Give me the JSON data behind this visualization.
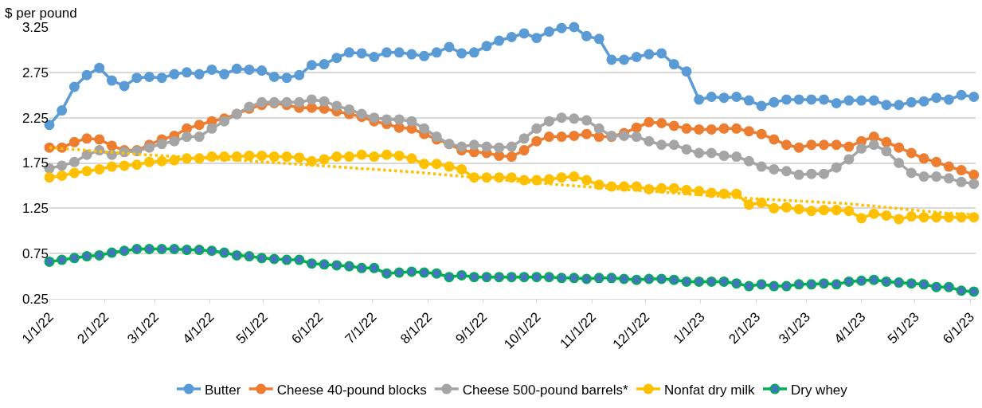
{
  "chart_data": {
    "type": "line",
    "ylabel": "$ per pound",
    "x": [
      "2022-01-01",
      "2022-01-08",
      "2022-01-15",
      "2022-01-22",
      "2022-01-29",
      "2022-02-05",
      "2022-02-12",
      "2022-02-19",
      "2022-02-26",
      "2022-03-05",
      "2022-03-12",
      "2022-03-19",
      "2022-03-26",
      "2022-04-02",
      "2022-04-09",
      "2022-04-16",
      "2022-04-23",
      "2022-04-30",
      "2022-05-07",
      "2022-05-14",
      "2022-05-21",
      "2022-05-28",
      "2022-06-04",
      "2022-06-11",
      "2022-06-18",
      "2022-06-25",
      "2022-07-02",
      "2022-07-09",
      "2022-07-16",
      "2022-07-23",
      "2022-07-30",
      "2022-08-06",
      "2022-08-13",
      "2022-08-20",
      "2022-08-27",
      "2022-09-03",
      "2022-09-10",
      "2022-09-17",
      "2022-09-24",
      "2022-10-01",
      "2022-10-08",
      "2022-10-15",
      "2022-10-22",
      "2022-10-29",
      "2022-11-05",
      "2022-11-12",
      "2022-11-19",
      "2022-11-26",
      "2022-12-03",
      "2022-12-10",
      "2022-12-17",
      "2022-12-24",
      "2022-12-31",
      "2023-01-07",
      "2023-01-14",
      "2023-01-21",
      "2023-01-28",
      "2023-02-04",
      "2023-02-11",
      "2023-02-18",
      "2023-02-25",
      "2023-03-04",
      "2023-03-11",
      "2023-03-18",
      "2023-03-25",
      "2023-04-01",
      "2023-04-08",
      "2023-04-15",
      "2023-04-22",
      "2023-04-29",
      "2023-05-06",
      "2023-05-13",
      "2023-05-20",
      "2023-05-27",
      "2023-06-03"
    ],
    "series": [
      {
        "name": "Butter",
        "color": "#5b9bd5",
        "values": [
          2.17,
          2.33,
          2.59,
          2.72,
          2.8,
          2.66,
          2.6,
          2.69,
          2.7,
          2.69,
          2.73,
          2.75,
          2.73,
          2.78,
          2.73,
          2.79,
          2.78,
          2.77,
          2.7,
          2.69,
          2.72,
          2.83,
          2.84,
          2.91,
          2.97,
          2.96,
          2.92,
          2.97,
          2.97,
          2.95,
          2.93,
          2.97,
          3.03,
          2.96,
          2.97,
          3.04,
          3.1,
          3.14,
          3.18,
          3.13,
          3.2,
          3.24,
          3.25,
          3.15,
          3.12,
          2.89,
          2.89,
          2.92,
          2.95,
          2.96,
          2.84,
          2.76,
          2.45,
          2.48,
          2.47,
          2.48,
          2.44,
          2.38,
          2.42,
          2.45,
          2.45,
          2.45,
          2.45,
          2.41,
          2.44,
          2.44,
          2.44,
          2.39,
          2.39,
          2.42,
          2.43,
          2.47,
          2.45,
          2.5,
          2.48
        ]
      },
      {
        "name": "Cheese 40-pound blocks",
        "color": "#ed7d31",
        "values": [
          1.92,
          1.92,
          1.98,
          2.02,
          2.01,
          1.94,
          1.89,
          1.89,
          1.95,
          2.01,
          2.05,
          2.13,
          2.17,
          2.21,
          2.24,
          2.29,
          2.35,
          2.39,
          2.41,
          2.39,
          2.36,
          2.36,
          2.35,
          2.32,
          2.29,
          2.26,
          2.21,
          2.18,
          2.14,
          2.13,
          2.07,
          2.01,
          1.96,
          1.89,
          1.87,
          1.86,
          1.83,
          1.82,
          1.89,
          1.99,
          2.04,
          2.04,
          2.05,
          2.07,
          2.04,
          2.04,
          2.08,
          2.14,
          2.2,
          2.19,
          2.16,
          2.13,
          2.12,
          2.12,
          2.13,
          2.13,
          2.1,
          2.07,
          2.01,
          1.95,
          1.92,
          1.95,
          1.95,
          1.95,
          1.93,
          1.99,
          2.04,
          1.98,
          1.92,
          1.86,
          1.8,
          1.76,
          1.71,
          1.67,
          1.62
        ]
      },
      {
        "name": "Cheese 500-pound barrels*",
        "color": "#a5a5a5",
        "values": [
          1.69,
          1.72,
          1.76,
          1.84,
          1.89,
          1.84,
          1.87,
          1.88,
          1.92,
          1.96,
          1.99,
          2.04,
          2.04,
          2.13,
          2.21,
          2.29,
          2.37,
          2.42,
          2.42,
          2.42,
          2.42,
          2.45,
          2.43,
          2.38,
          2.34,
          2.29,
          2.25,
          2.23,
          2.23,
          2.21,
          2.13,
          2.04,
          1.96,
          1.93,
          1.95,
          1.93,
          1.92,
          1.93,
          2.02,
          2.13,
          2.21,
          2.25,
          2.24,
          2.22,
          2.13,
          2.05,
          2.05,
          2.04,
          1.99,
          1.95,
          1.95,
          1.9,
          1.86,
          1.86,
          1.83,
          1.82,
          1.77,
          1.71,
          1.68,
          1.66,
          1.62,
          1.63,
          1.63,
          1.7,
          1.79,
          1.91,
          1.95,
          1.88,
          1.75,
          1.64,
          1.6,
          1.6,
          1.58,
          1.54,
          1.52
        ]
      },
      {
        "name": "Nonfat dry milk",
        "color": "#ffc000",
        "values": [
          1.59,
          1.61,
          1.64,
          1.66,
          1.68,
          1.71,
          1.72,
          1.73,
          1.76,
          1.77,
          1.78,
          1.8,
          1.8,
          1.82,
          1.82,
          1.82,
          1.83,
          1.83,
          1.82,
          1.82,
          1.81,
          1.77,
          1.79,
          1.82,
          1.82,
          1.84,
          1.82,
          1.84,
          1.83,
          1.8,
          1.74,
          1.74,
          1.71,
          1.68,
          1.59,
          1.59,
          1.59,
          1.59,
          1.56,
          1.56,
          1.57,
          1.59,
          1.6,
          1.56,
          1.51,
          1.49,
          1.49,
          1.49,
          1.46,
          1.47,
          1.47,
          1.45,
          1.44,
          1.42,
          1.41,
          1.41,
          1.29,
          1.31,
          1.25,
          1.26,
          1.24,
          1.22,
          1.23,
          1.23,
          1.22,
          1.14,
          1.19,
          1.17,
          1.13,
          1.16,
          1.15,
          1.15,
          1.15,
          1.15,
          1.15
        ]
      },
      {
        "name": "Dry whey",
        "color": "#00b050",
        "colors": [
          "#4472c4",
          "#4472c4",
          "#4472c4",
          "#4472c4",
          "#4472c4",
          "#4472c4",
          "#4472c4",
          "#4472c4",
          "#4472c4",
          "#4472c4",
          "#4472c4",
          "#4472c4",
          "#4472c4",
          "#4472c4",
          "#4472c4",
          "#4472c4",
          "#4472c4",
          "#4472c4",
          "#4472c4",
          "#4472c4",
          "#4472c4",
          "#4472c4",
          "#4472c4",
          "#4472c4",
          "#4472c4",
          "#4472c4",
          "#4472c4",
          "#4472c4",
          "#4472c4",
          "#4472c4",
          "#4472c4",
          "#4472c4",
          "#4472c4",
          "#4472c4",
          "#4472c4",
          "#4472c4",
          "#4472c4",
          "#4472c4",
          "#4472c4",
          "#4472c4",
          "#4472c4",
          "#4472c4",
          "#4472c4",
          "#4472c4",
          "#4472c4",
          "#4472c4",
          "#4472c4",
          "#4472c4",
          "#4472c4",
          "#4472c4",
          "#4472c4",
          "#4472c4",
          "#4472c4",
          "#4472c4",
          "#4472c4",
          "#4472c4",
          "#4472c4",
          "#4472c4",
          "#4472c4",
          "#4472c4",
          "#4472c4",
          "#4472c4",
          "#4472c4",
          "#4472c4",
          "#4472c4",
          "#4472c4",
          "#4472c4",
          "#4472c4",
          "#4472c4",
          "#4472c4",
          "#4472c4",
          "#4472c4",
          "#4472c4",
          "#4472c4",
          "#4472c4"
        ],
        "values": [
          0.66,
          0.68,
          0.7,
          0.72,
          0.73,
          0.76,
          0.78,
          0.8,
          0.8,
          0.8,
          0.8,
          0.79,
          0.79,
          0.78,
          0.76,
          0.73,
          0.72,
          0.7,
          0.69,
          0.68,
          0.68,
          0.64,
          0.63,
          0.62,
          0.61,
          0.59,
          0.59,
          0.53,
          0.54,
          0.55,
          0.54,
          0.53,
          0.49,
          0.51,
          0.49,
          0.49,
          0.49,
          0.49,
          0.49,
          0.49,
          0.49,
          0.48,
          0.48,
          0.47,
          0.48,
          0.48,
          0.47,
          0.46,
          0.47,
          0.47,
          0.46,
          0.44,
          0.44,
          0.44,
          0.44,
          0.42,
          0.39,
          0.41,
          0.39,
          0.39,
          0.41,
          0.41,
          0.42,
          0.41,
          0.44,
          0.45,
          0.46,
          0.44,
          0.43,
          0.42,
          0.41,
          0.38,
          0.38,
          0.34,
          0.33
        ]
      },
      {
        "color": "#ffc000",
        "marker": "none",
        "line_style": "dotted",
        "x": [
          "2022-01-01",
          "2022-02-24",
          "2022-04-10",
          "2022-07-24",
          "2022-10-07",
          "2023-01-27",
          "2023-03-25",
          "2023-05-16",
          "2023-06-03"
        ],
        "values": [
          1.92,
          1.84,
          1.79,
          1.65,
          1.52,
          1.36,
          1.3,
          1.2,
          1.18
        ]
      }
    ],
    "xlim": [
      "2022-01-01",
      "2023-06-04"
    ],
    "xticks": [
      {
        "value": "2022-01-01",
        "label": "1/1/22"
      },
      {
        "value": "2022-02-01",
        "label": "2/1/22"
      },
      {
        "value": "2022-03-01",
        "label": "3/1/22"
      },
      {
        "value": "2022-04-01",
        "label": "4/1/22"
      },
      {
        "value": "2022-05-01",
        "label": "5/1/22"
      },
      {
        "value": "2022-06-01",
        "label": "6/1/22"
      },
      {
        "value": "2022-07-01",
        "label": "7/1/22"
      },
      {
        "value": "2022-08-01",
        "label": "8/1/22"
      },
      {
        "value": "2022-09-01",
        "label": "9/1/22"
      },
      {
        "value": "2022-10-01",
        "label": "10/1/22"
      },
      {
        "value": "2022-11-01",
        "label": "11/1/22"
      },
      {
        "value": "2022-12-01",
        "label": "12/1/22"
      },
      {
        "value": "2023-01-01",
        "label": "1/1/23"
      },
      {
        "value": "2023-02-01",
        "label": "2/1/23"
      },
      {
        "value": "2023-03-01",
        "label": "3/1/23"
      },
      {
        "value": "2023-04-01",
        "label": "4/1/23"
      },
      {
        "value": "2023-05-01",
        "label": "5/1/23"
      },
      {
        "value": "2023-06-01",
        "label": "6/1/23"
      }
    ],
    "ylim": [
      0.25,
      3.25
    ],
    "yticks": [
      0.25,
      0.75,
      1.25,
      1.75,
      2.25,
      2.75,
      3.25
    ],
    "grid": "y",
    "legend": "bottom",
    "marker": "circle",
    "line_style": "solid"
  }
}
